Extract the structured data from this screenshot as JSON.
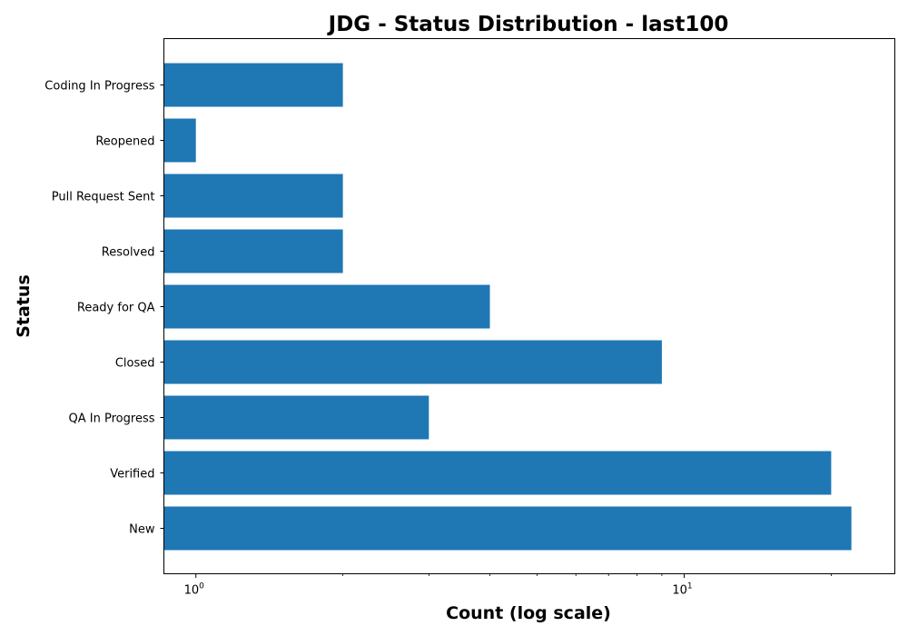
{
  "chart_data": {
    "type": "bar",
    "orientation": "horizontal",
    "title": "JDG - Status Distribution - last100",
    "xlabel": "Count (log scale)",
    "ylabel": "Status",
    "x_scale": "log",
    "xlim": [
      0.86,
      27
    ],
    "x_major_ticks": [
      {
        "value": 1,
        "base": "10",
        "exponent": "0"
      },
      {
        "value": 10,
        "base": "10",
        "exponent": "1"
      }
    ],
    "categories": [
      "Coding In Progress",
      "Reopened",
      "Pull Request Sent",
      "Resolved",
      "Ready for QA",
      "Closed",
      "QA In Progress",
      "Verified",
      "New"
    ],
    "values": [
      2,
      1,
      2,
      2,
      4,
      9,
      3,
      20,
      22
    ],
    "bar_color": "#1f77b4",
    "grid": false,
    "legend": "none"
  }
}
